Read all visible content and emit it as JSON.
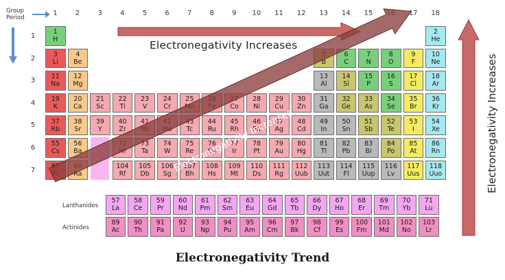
{
  "title": "Electronegativity Trend",
  "labels": {
    "group": "Group",
    "period": "Period",
    "lanthanides": "Lanthanides",
    "actinides": "Actinides"
  },
  "arrows": {
    "horizontal": "Electronegativity Increases",
    "vertical": "Electronegativity Increases",
    "diagonal": "Electronegativity Increases"
  },
  "groups": [
    "1",
    "2",
    "3",
    "4",
    "5",
    "6",
    "7",
    "8",
    "9",
    "10",
    "11",
    "12",
    "13",
    "14",
    "15",
    "16",
    "17",
    "18"
  ],
  "periods": [
    "1",
    "2",
    "3",
    "4",
    "5",
    "6",
    "7"
  ],
  "elements": [
    {
      "n": "1",
      "s": "H",
      "g": 1,
      "p": 1,
      "c": "h"
    },
    {
      "n": "2",
      "s": "He",
      "g": 18,
      "p": 1,
      "c": "ng"
    },
    {
      "n": "3",
      "s": "Li",
      "g": 1,
      "p": 2,
      "c": "am"
    },
    {
      "n": "4",
      "s": "Be",
      "g": 2,
      "p": 2,
      "c": "ae"
    },
    {
      "n": "5",
      "s": "B",
      "g": 13,
      "p": 2,
      "c": "md"
    },
    {
      "n": "6",
      "s": "C",
      "g": 14,
      "p": 2,
      "c": "nm"
    },
    {
      "n": "7",
      "s": "N",
      "g": 15,
      "p": 2,
      "c": "nm"
    },
    {
      "n": "8",
      "s": "O",
      "g": 16,
      "p": 2,
      "c": "nm"
    },
    {
      "n": "9",
      "s": "F",
      "g": 17,
      "p": 2,
      "c": "ha"
    },
    {
      "n": "10",
      "s": "Ne",
      "g": 18,
      "p": 2,
      "c": "ng"
    },
    {
      "n": "11",
      "s": "Na",
      "g": 1,
      "p": 3,
      "c": "am"
    },
    {
      "n": "12",
      "s": "Mg",
      "g": 2,
      "p": 3,
      "c": "ae"
    },
    {
      "n": "13",
      "s": "Al",
      "g": 13,
      "p": 3,
      "c": "pm"
    },
    {
      "n": "14",
      "s": "Si",
      "g": 14,
      "p": 3,
      "c": "md"
    },
    {
      "n": "15",
      "s": "P",
      "g": 15,
      "p": 3,
      "c": "nm"
    },
    {
      "n": "16",
      "s": "S",
      "g": 16,
      "p": 3,
      "c": "nm"
    },
    {
      "n": "17",
      "s": "Cl",
      "g": 17,
      "p": 3,
      "c": "ha"
    },
    {
      "n": "18",
      "s": "Ar",
      "g": 18,
      "p": 3,
      "c": "ng"
    },
    {
      "n": "19",
      "s": "K",
      "g": 1,
      "p": 4,
      "c": "am"
    },
    {
      "n": "20",
      "s": "Ca",
      "g": 2,
      "p": 4,
      "c": "ae"
    },
    {
      "n": "21",
      "s": "Sc",
      "g": 3,
      "p": 4,
      "c": "tm"
    },
    {
      "n": "22",
      "s": "Ti",
      "g": 4,
      "p": 4,
      "c": "tm"
    },
    {
      "n": "23",
      "s": "V",
      "g": 5,
      "p": 4,
      "c": "tm"
    },
    {
      "n": "24",
      "s": "Cr",
      "g": 6,
      "p": 4,
      "c": "tm"
    },
    {
      "n": "25",
      "s": "Mn",
      "g": 7,
      "p": 4,
      "c": "tm"
    },
    {
      "n": "26",
      "s": "Fe",
      "g": 8,
      "p": 4,
      "c": "tm"
    },
    {
      "n": "27",
      "s": "Co",
      "g": 9,
      "p": 4,
      "c": "tm"
    },
    {
      "n": "28",
      "s": "Ni",
      "g": 10,
      "p": 4,
      "c": "tm"
    },
    {
      "n": "29",
      "s": "Cu",
      "g": 11,
      "p": 4,
      "c": "tm"
    },
    {
      "n": "30",
      "s": "Zn",
      "g": 12,
      "p": 4,
      "c": "tm"
    },
    {
      "n": "31",
      "s": "Ga",
      "g": 13,
      "p": 4,
      "c": "pm"
    },
    {
      "n": "32",
      "s": "Ge",
      "g": 14,
      "p": 4,
      "c": "md"
    },
    {
      "n": "33",
      "s": "As",
      "g": 15,
      "p": 4,
      "c": "md"
    },
    {
      "n": "34",
      "s": "Se",
      "g": 16,
      "p": 4,
      "c": "nm"
    },
    {
      "n": "35",
      "s": "Br",
      "g": 17,
      "p": 4,
      "c": "ha"
    },
    {
      "n": "36",
      "s": "Kr",
      "g": 18,
      "p": 4,
      "c": "ng"
    },
    {
      "n": "37",
      "s": "Rb",
      "g": 1,
      "p": 5,
      "c": "am"
    },
    {
      "n": "38",
      "s": "Sr",
      "g": 2,
      "p": 5,
      "c": "ae"
    },
    {
      "n": "39",
      "s": "Y",
      "g": 3,
      "p": 5,
      "c": "tm"
    },
    {
      "n": "40",
      "s": "Zr",
      "g": 4,
      "p": 5,
      "c": "tm"
    },
    {
      "n": "41",
      "s": "Nb",
      "g": 5,
      "p": 5,
      "c": "tm"
    },
    {
      "n": "42",
      "s": "Mo",
      "g": 6,
      "p": 5,
      "c": "tm"
    },
    {
      "n": "43",
      "s": "Tc",
      "g": 7,
      "p": 5,
      "c": "tm"
    },
    {
      "n": "44",
      "s": "Ru",
      "g": 8,
      "p": 5,
      "c": "tm"
    },
    {
      "n": "45",
      "s": "Rh",
      "g": 9,
      "p": 5,
      "c": "tm"
    },
    {
      "n": "46",
      "s": "Pd",
      "g": 10,
      "p": 5,
      "c": "tm"
    },
    {
      "n": "47",
      "s": "Ag",
      "g": 11,
      "p": 5,
      "c": "tm"
    },
    {
      "n": "48",
      "s": "Cd",
      "g": 12,
      "p": 5,
      "c": "tm"
    },
    {
      "n": "49",
      "s": "In",
      "g": 13,
      "p": 5,
      "c": "pm"
    },
    {
      "n": "50",
      "s": "Sn",
      "g": 14,
      "p": 5,
      "c": "pm"
    },
    {
      "n": "51",
      "s": "Sb",
      "g": 15,
      "p": 5,
      "c": "md"
    },
    {
      "n": "52",
      "s": "Te",
      "g": 16,
      "p": 5,
      "c": "md"
    },
    {
      "n": "53",
      "s": "I",
      "g": 17,
      "p": 5,
      "c": "ha"
    },
    {
      "n": "54",
      "s": "Xe",
      "g": 18,
      "p": 5,
      "c": "ng"
    },
    {
      "n": "55",
      "s": "Cs",
      "g": 1,
      "p": 6,
      "c": "am"
    },
    {
      "n": "56",
      "s": "Ba",
      "g": 2,
      "p": 6,
      "c": "ae"
    },
    {
      "n": "72",
      "s": "Hf",
      "g": 4,
      "p": 6,
      "c": "tm"
    },
    {
      "n": "73",
      "s": "Ta",
      "g": 5,
      "p": 6,
      "c": "tm"
    },
    {
      "n": "74",
      "s": "W",
      "g": 6,
      "p": 6,
      "c": "tm"
    },
    {
      "n": "75",
      "s": "Re",
      "g": 7,
      "p": 6,
      "c": "tm"
    },
    {
      "n": "76",
      "s": "Os",
      "g": 8,
      "p": 6,
      "c": "tm"
    },
    {
      "n": "77",
      "s": "Ir",
      "g": 9,
      "p": 6,
      "c": "tm"
    },
    {
      "n": "78",
      "s": "Pt",
      "g": 10,
      "p": 6,
      "c": "tm"
    },
    {
      "n": "79",
      "s": "Au",
      "g": 11,
      "p": 6,
      "c": "tm"
    },
    {
      "n": "80",
      "s": "Hg",
      "g": 12,
      "p": 6,
      "c": "tm"
    },
    {
      "n": "81",
      "s": "Tl",
      "g": 13,
      "p": 6,
      "c": "pm"
    },
    {
      "n": "82",
      "s": "Pb",
      "g": 14,
      "p": 6,
      "c": "pm"
    },
    {
      "n": "83",
      "s": "Bi",
      "g": 15,
      "p": 6,
      "c": "pm"
    },
    {
      "n": "84",
      "s": "Po",
      "g": 16,
      "p": 6,
      "c": "md"
    },
    {
      "n": "85",
      "s": "At",
      "g": 17,
      "p": 6,
      "c": "ha"
    },
    {
      "n": "86",
      "s": "Rn",
      "g": 18,
      "p": 6,
      "c": "ng"
    },
    {
      "n": "87",
      "s": "Fr",
      "g": 1,
      "p": 7,
      "c": "am"
    },
    {
      "n": "88",
      "s": "Ra",
      "g": 2,
      "p": 7,
      "c": "ae"
    },
    {
      "n": "104",
      "s": "Rf",
      "g": 4,
      "p": 7,
      "c": "tm"
    },
    {
      "n": "105",
      "s": "Db",
      "g": 5,
      "p": 7,
      "c": "tm"
    },
    {
      "n": "106",
      "s": "Sg",
      "g": 6,
      "p": 7,
      "c": "tm"
    },
    {
      "n": "107",
      "s": "Bh",
      "g": 7,
      "p": 7,
      "c": "tm"
    },
    {
      "n": "108",
      "s": "Hs",
      "g": 8,
      "p": 7,
      "c": "tm"
    },
    {
      "n": "109",
      "s": "Mt",
      "g": 9,
      "p": 7,
      "c": "tm"
    },
    {
      "n": "110",
      "s": "Ds",
      "g": 10,
      "p": 7,
      "c": "tm"
    },
    {
      "n": "111",
      "s": "Rg",
      "g": 11,
      "p": 7,
      "c": "tm"
    },
    {
      "n": "112",
      "s": "Uub",
      "g": 12,
      "p": 7,
      "c": "tm"
    },
    {
      "n": "113",
      "s": "Uut",
      "g": 13,
      "p": 7,
      "c": "pm"
    },
    {
      "n": "114",
      "s": "Fl",
      "g": 14,
      "p": 7,
      "c": "pm"
    },
    {
      "n": "115",
      "s": "Uup",
      "g": 15,
      "p": 7,
      "c": "pm"
    },
    {
      "n": "116",
      "s": "Lv",
      "g": 16,
      "p": 7,
      "c": "pm"
    },
    {
      "n": "117",
      "s": "Uus",
      "g": 17,
      "p": 7,
      "c": "ha"
    },
    {
      "n": "118",
      "s": "Uuo",
      "g": 18,
      "p": 7,
      "c": "ng"
    }
  ],
  "lanthanides": [
    {
      "n": "57",
      "s": "La"
    },
    {
      "n": "58",
      "s": "Ce"
    },
    {
      "n": "59",
      "s": "Pr"
    },
    {
      "n": "60",
      "s": "Nd"
    },
    {
      "n": "61",
      "s": "Pm"
    },
    {
      "n": "62",
      "s": "Sm"
    },
    {
      "n": "63",
      "s": "Eu"
    },
    {
      "n": "64",
      "s": "Gd"
    },
    {
      "n": "65",
      "s": "Tb"
    },
    {
      "n": "66",
      "s": "Dy"
    },
    {
      "n": "67",
      "s": "Ho"
    },
    {
      "n": "68",
      "s": "Er"
    },
    {
      "n": "69",
      "s": "Tm"
    },
    {
      "n": "70",
      "s": "Yb"
    },
    {
      "n": "71",
      "s": "Lu"
    }
  ],
  "actinides": [
    {
      "n": "89",
      "s": "Ac"
    },
    {
      "n": "90",
      "s": "Th"
    },
    {
      "n": "91",
      "s": "Pa"
    },
    {
      "n": "92",
      "s": "U"
    },
    {
      "n": "93",
      "s": "Np"
    },
    {
      "n": "94",
      "s": "Pu"
    },
    {
      "n": "95",
      "s": "Am"
    },
    {
      "n": "96",
      "s": "Cm"
    },
    {
      "n": "97",
      "s": "Bk"
    },
    {
      "n": "98",
      "s": "Cf"
    },
    {
      "n": "99",
      "s": "Es"
    },
    {
      "n": "100",
      "s": "Fm"
    },
    {
      "n": "101",
      "s": "Md"
    },
    {
      "n": "102",
      "s": "No"
    },
    {
      "n": "103",
      "s": "Lr"
    }
  ],
  "colors": {
    "arrow_fill": "#c96a6a",
    "arrow_stroke": "#9b3e3e",
    "diagonal_fill": "#8a3f3f",
    "blue_arrow": "#5b8fd1"
  }
}
